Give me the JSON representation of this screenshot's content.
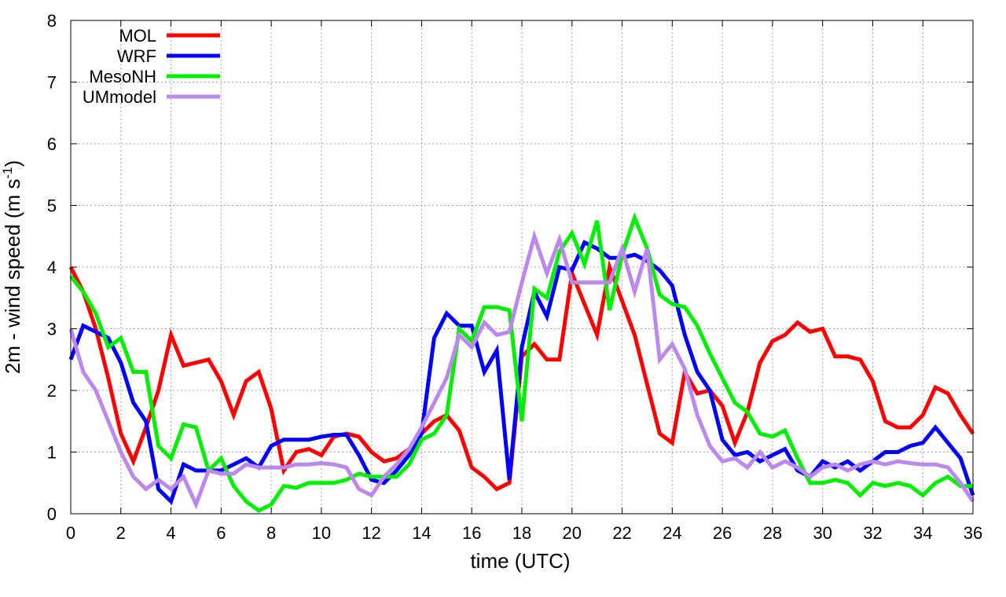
{
  "chart_data": {
    "type": "line",
    "xlabel": "time (UTC)",
    "ylabel": "2m - wind speed  (m s",
    "ylabel_exponent": "-1",
    "ylabel_close": ")",
    "xlim": [
      0,
      36
    ],
    "ylim": [
      0,
      8
    ],
    "xticks": [
      "0",
      "2",
      "4",
      "6",
      "8",
      "10",
      "12",
      "14",
      "16",
      "18",
      "20",
      "22",
      "24",
      "26",
      "28",
      "30",
      "32",
      "34",
      "36"
    ],
    "yticks": [
      "0",
      "1",
      "2",
      "3",
      "4",
      "5",
      "6",
      "7",
      "8"
    ],
    "grid": true,
    "legend_position": "top-left",
    "x": [
      0,
      0.5,
      1,
      1.5,
      2,
      2.5,
      3,
      3.5,
      4,
      4.5,
      5,
      5.5,
      6,
      6.5,
      7,
      7.5,
      8,
      8.5,
      9,
      9.5,
      10,
      10.5,
      11,
      11.5,
      12,
      12.5,
      13,
      13.5,
      14,
      14.5,
      15,
      15.5,
      16,
      16.5,
      17,
      17.5,
      18,
      18.5,
      19,
      19.5,
      20,
      20.5,
      21,
      21.5,
      22,
      22.5,
      23,
      23.5,
      24,
      24.5,
      25,
      25.5,
      26,
      26.5,
      27,
      27.5,
      28,
      28.5,
      29,
      29.5,
      30,
      30.5,
      31,
      31.5,
      32,
      32.5,
      33,
      33.5,
      34,
      34.5,
      35,
      35.5,
      36
    ],
    "series": [
      {
        "name": "MOL",
        "color": "#ff0000",
        "values": [
          4.0,
          3.6,
          3.0,
          2.2,
          1.3,
          0.85,
          1.4,
          2.0,
          2.9,
          2.4,
          2.45,
          2.5,
          2.15,
          1.6,
          2.15,
          2.3,
          1.7,
          0.7,
          1.0,
          1.05,
          0.95,
          1.25,
          1.3,
          1.25,
          1.0,
          0.85,
          0.9,
          1.05,
          1.3,
          1.5,
          1.6,
          1.35,
          0.75,
          0.6,
          0.4,
          0.5,
          2.55,
          2.75,
          2.5,
          2.5,
          3.9,
          3.4,
          2.9,
          4.0,
          3.45,
          2.9,
          2.1,
          1.3,
          1.15,
          2.3,
          1.95,
          2.0,
          1.75,
          1.15,
          1.65,
          2.45,
          2.8,
          2.9,
          3.1,
          2.95,
          3.0,
          2.55,
          2.55,
          2.5,
          2.15,
          1.5,
          1.4,
          1.4,
          1.6,
          2.05,
          1.95,
          1.6,
          1.3
        ]
      },
      {
        "name": "WRF",
        "color": "#0000ff",
        "values": [
          2.5,
          3.05,
          2.95,
          2.85,
          2.45,
          1.8,
          1.5,
          0.4,
          0.2,
          0.8,
          0.7,
          0.7,
          0.7,
          0.8,
          0.9,
          0.75,
          1.1,
          1.2,
          1.2,
          1.2,
          1.25,
          1.28,
          1.28,
          0.95,
          0.55,
          0.5,
          0.7,
          0.95,
          1.3,
          2.85,
          3.25,
          3.05,
          3.05,
          2.3,
          2.65,
          0.55,
          2.7,
          3.6,
          3.2,
          4.0,
          3.95,
          4.4,
          4.3,
          4.15,
          4.15,
          4.2,
          4.1,
          3.95,
          3.7,
          2.9,
          2.3,
          2.0,
          1.2,
          0.95,
          1.0,
          0.85,
          0.95,
          1.05,
          0.7,
          0.6,
          0.85,
          0.75,
          0.85,
          0.7,
          0.85,
          1.0,
          1.0,
          1.1,
          1.15,
          1.4,
          1.15,
          0.9,
          0.3
        ]
      },
      {
        "name": "MesoNH",
        "color": "#00ee00",
        "values": [
          3.85,
          3.6,
          3.25,
          2.7,
          2.85,
          2.3,
          2.3,
          1.1,
          0.9,
          1.45,
          1.4,
          0.7,
          0.9,
          0.45,
          0.2,
          0.05,
          0.15,
          0.45,
          0.42,
          0.5,
          0.5,
          0.5,
          0.55,
          0.65,
          0.6,
          0.6,
          0.6,
          0.8,
          1.2,
          1.3,
          1.6,
          3.0,
          2.8,
          3.35,
          3.35,
          3.3,
          1.5,
          3.65,
          3.5,
          4.25,
          4.55,
          4.05,
          4.75,
          3.3,
          4.2,
          4.8,
          4.3,
          3.55,
          3.4,
          3.35,
          3.05,
          2.6,
          2.2,
          1.8,
          1.65,
          1.3,
          1.25,
          1.35,
          0.9,
          0.5,
          0.5,
          0.55,
          0.5,
          0.3,
          0.5,
          0.45,
          0.5,
          0.45,
          0.3,
          0.5,
          0.6,
          0.45,
          0.45
        ]
      },
      {
        "name": "UMmodel",
        "color": "#bb88ee",
        "values": [
          3.0,
          2.3,
          2.0,
          1.5,
          1.0,
          0.6,
          0.4,
          0.55,
          0.4,
          0.6,
          0.15,
          0.7,
          0.65,
          0.65,
          0.8,
          0.75,
          0.75,
          0.75,
          0.8,
          0.8,
          0.82,
          0.8,
          0.75,
          0.4,
          0.3,
          0.6,
          0.8,
          1.05,
          1.4,
          1.8,
          2.2,
          2.9,
          2.7,
          3.1,
          2.9,
          2.95,
          3.75,
          4.5,
          3.9,
          4.45,
          3.75,
          3.75,
          3.75,
          3.75,
          4.3,
          3.6,
          4.3,
          2.5,
          2.75,
          2.35,
          1.6,
          1.1,
          0.85,
          0.9,
          0.75,
          1.0,
          0.75,
          0.85,
          0.75,
          0.6,
          0.75,
          0.8,
          0.7,
          0.8,
          0.85,
          0.8,
          0.85,
          0.82,
          0.8,
          0.8,
          0.75,
          0.5,
          0.2
        ]
      }
    ]
  }
}
